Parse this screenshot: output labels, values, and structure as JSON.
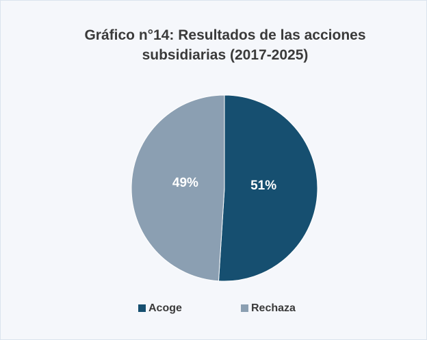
{
  "chart_data": {
    "type": "pie",
    "title": "Gráfico n°14: Resultados de las acciones subsidiarias (2017-2025)",
    "categories": [
      "Acoge",
      "Rechaza"
    ],
    "values": [
      51,
      49
    ],
    "value_labels": [
      "51%",
      "49%"
    ],
    "colors": [
      "#164f70",
      "#8b9fb2"
    ]
  }
}
